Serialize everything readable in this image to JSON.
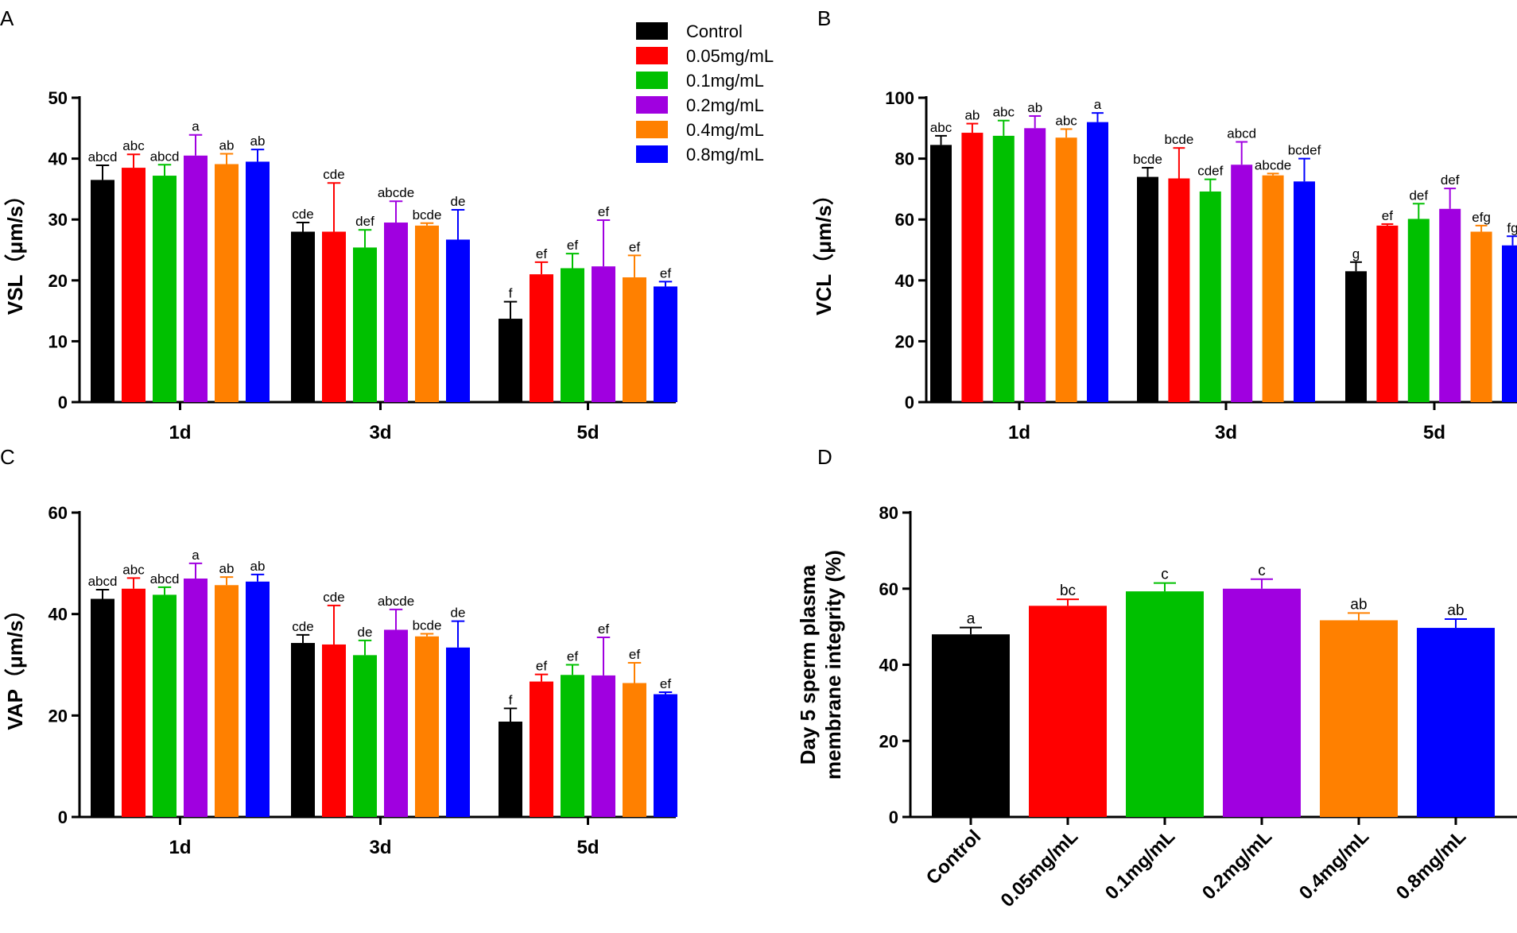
{
  "series_colors": [
    "#000000",
    "#ff0000",
    "#00c000",
    "#a000e0",
    "#ff8000",
    "#0000ff"
  ],
  "legend": [
    "Control",
    "0.05mg/mL",
    "0.1mg/mL",
    "0.2mg/mL",
    "0.4mg/mL",
    "0.8mg/mL"
  ],
  "chart_data": [
    {
      "panel": "A",
      "type": "bar",
      "ylabel": "VSL（μm/s）",
      "ylim": [
        0,
        50
      ],
      "yticks": [
        0,
        10,
        20,
        30,
        40,
        50
      ],
      "categories": [
        "1d",
        "3d",
        "5d"
      ],
      "series": [
        {
          "name": "Control",
          "values": [
            36.5,
            28.0,
            13.7
          ],
          "err": [
            2.4,
            1.5,
            2.8
          ],
          "labels": [
            "abcd",
            "cde",
            "f"
          ]
        },
        {
          "name": "0.05mg/mL",
          "values": [
            38.5,
            28.0,
            21.0
          ],
          "err": [
            2.2,
            8.0,
            2.0
          ],
          "labels": [
            "abc",
            "cde",
            "ef"
          ]
        },
        {
          "name": "0.1mg/mL",
          "values": [
            37.2,
            25.4,
            22.0
          ],
          "err": [
            1.8,
            2.9,
            2.4
          ],
          "labels": [
            "abcd",
            "def",
            "ef"
          ]
        },
        {
          "name": "0.2mg/mL",
          "values": [
            40.5,
            29.5,
            22.3
          ],
          "err": [
            3.4,
            3.5,
            7.6
          ],
          "labels": [
            "a",
            "abcde",
            "ef"
          ]
        },
        {
          "name": "0.4mg/mL",
          "values": [
            39.1,
            29.0,
            20.5
          ],
          "err": [
            1.7,
            0.4,
            3.6
          ],
          "labels": [
            "ab",
            "bcde",
            "ef"
          ]
        },
        {
          "name": "0.8mg/mL",
          "values": [
            39.5,
            26.7,
            19.0
          ],
          "err": [
            2.0,
            4.9,
            0.8
          ],
          "labels": [
            "ab",
            "de",
            "ef"
          ]
        }
      ]
    },
    {
      "panel": "B",
      "type": "bar",
      "ylabel": "VCL（μm/s）",
      "ylim": [
        0,
        100
      ],
      "yticks": [
        0,
        20,
        40,
        60,
        80,
        100
      ],
      "categories": [
        "1d",
        "3d",
        "5d"
      ],
      "series": [
        {
          "name": "Control",
          "values": [
            84.5,
            74.0,
            43.0
          ],
          "err": [
            3.0,
            3.0,
            3.0
          ],
          "labels": [
            "abc",
            "bcde",
            "g"
          ]
        },
        {
          "name": "0.05mg/mL",
          "values": [
            88.5,
            73.5,
            58.0
          ],
          "err": [
            3.0,
            10.0,
            0.5
          ],
          "labels": [
            "ab",
            "bcde",
            "ef"
          ]
        },
        {
          "name": "0.1mg/mL",
          "values": [
            87.5,
            69.2,
            60.2
          ],
          "err": [
            5.0,
            4.0,
            5.0
          ],
          "labels": [
            "abc",
            "cdef",
            "def"
          ]
        },
        {
          "name": "0.2mg/mL",
          "values": [
            90.0,
            78.0,
            63.5
          ],
          "err": [
            4.0,
            7.5,
            6.7
          ],
          "labels": [
            "ab",
            "abcd",
            "def"
          ]
        },
        {
          "name": "0.4mg/mL",
          "values": [
            86.9,
            74.5,
            56.0
          ],
          "err": [
            2.8,
            0.6,
            2.0
          ],
          "labels": [
            "abc",
            "abcde",
            "efg"
          ]
        },
        {
          "name": "0.8mg/mL",
          "values": [
            92.0,
            72.5,
            51.5
          ],
          "err": [
            3.0,
            7.5,
            3.0
          ],
          "labels": [
            "a",
            "bcdef",
            "fg"
          ]
        }
      ]
    },
    {
      "panel": "C",
      "type": "bar",
      "ylabel": "VAP（μm/s）",
      "ylim": [
        0,
        60
      ],
      "yticks": [
        0,
        20,
        40,
        60
      ],
      "categories": [
        "1d",
        "3d",
        "5d"
      ],
      "series": [
        {
          "name": "Control",
          "values": [
            43.0,
            34.3,
            18.8
          ],
          "err": [
            1.8,
            1.6,
            2.6
          ],
          "labels": [
            "abcd",
            "cde",
            "f"
          ]
        },
        {
          "name": "0.05mg/mL",
          "values": [
            45.0,
            34.0,
            26.7
          ],
          "err": [
            2.1,
            7.7,
            1.4
          ],
          "labels": [
            "abc",
            "cde",
            "ef"
          ]
        },
        {
          "name": "0.1mg/mL",
          "values": [
            43.8,
            31.9,
            28.0
          ],
          "err": [
            1.5,
            2.9,
            2.0
          ],
          "labels": [
            "abcd",
            "de",
            "ef"
          ]
        },
        {
          "name": "0.2mg/mL",
          "values": [
            47.0,
            36.9,
            27.9
          ],
          "err": [
            3.0,
            4.0,
            7.5
          ],
          "labels": [
            "a",
            "abcde",
            "ef"
          ]
        },
        {
          "name": "0.4mg/mL",
          "values": [
            45.7,
            35.6,
            26.4
          ],
          "err": [
            1.6,
            0.5,
            4.0
          ],
          "labels": [
            "ab",
            "bcde",
            "ef"
          ]
        },
        {
          "name": "0.8mg/mL",
          "values": [
            46.4,
            33.4,
            24.2
          ],
          "err": [
            1.4,
            5.2,
            0.4
          ],
          "labels": [
            "ab",
            "de",
            "ef"
          ]
        }
      ]
    },
    {
      "panel": "D",
      "type": "bar",
      "ylabel": [
        "Day 5 sperm plasma",
        "membrane integrity (%)"
      ],
      "ylim": [
        0,
        80
      ],
      "yticks": [
        0,
        20,
        40,
        60,
        80
      ],
      "categories": [
        "Control",
        "0.05mg/mL",
        "0.1mg/mL",
        "0.2mg/mL",
        "0.4mg/mL",
        "0.8mg/mL"
      ],
      "values": [
        48.0,
        55.5,
        59.3,
        60.0,
        51.7,
        49.7
      ],
      "err": [
        1.8,
        1.7,
        2.2,
        2.5,
        1.9,
        2.3
      ],
      "labels": [
        "a",
        "bc",
        "c",
        "c",
        "ab",
        "ab"
      ]
    }
  ]
}
